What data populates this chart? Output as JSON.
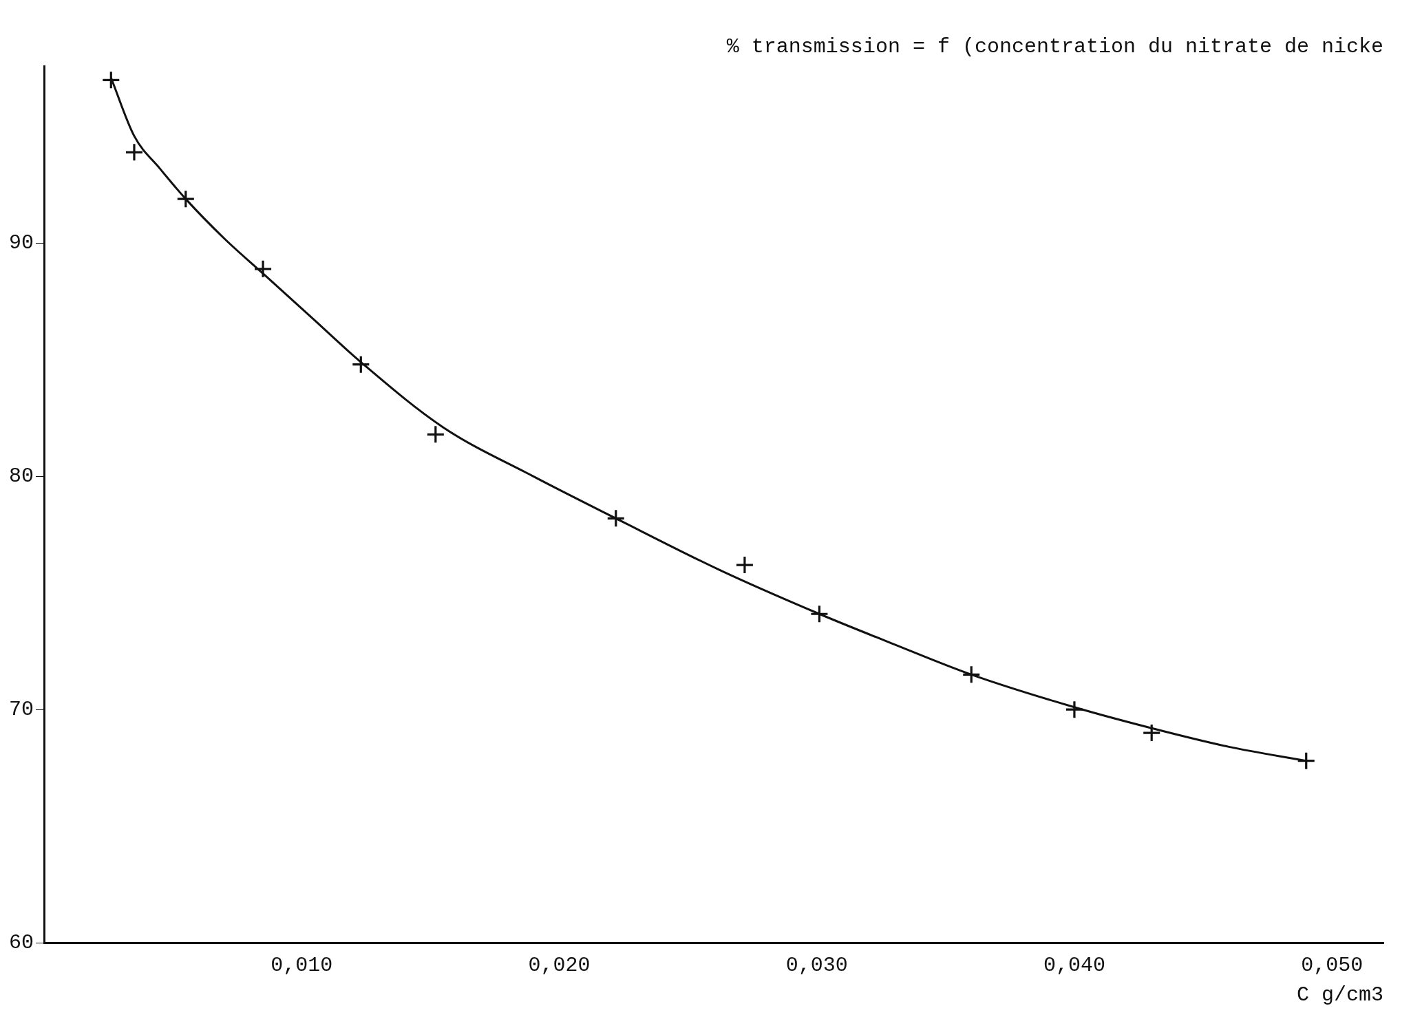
{
  "chart_data": {
    "type": "scatter",
    "title": "% transmission = f (concentration du nitrate de nicke",
    "xlabel": "C g/cm3",
    "xlim": [
      0,
      0.052
    ],
    "ylim": [
      60,
      97.6
    ],
    "xticks": [
      {
        "value": 0.01,
        "label": "0,010"
      },
      {
        "value": 0.02,
        "label": "0,020"
      },
      {
        "value": 0.03,
        "label": "0,030"
      },
      {
        "value": 0.04,
        "label": "0,040"
      },
      {
        "value": 0.05,
        "label": "0,050"
      }
    ],
    "yticks": [
      60,
      70,
      80,
      90
    ],
    "grid": false,
    "legend": false,
    "marker": "cross",
    "series": [
      {
        "color": "#111111",
        "x": [
          0.0026,
          0.0035,
          0.0055,
          0.0085,
          0.0123,
          0.0152,
          0.0222,
          0.0272,
          0.0301,
          0.036,
          0.04,
          0.043,
          0.049
        ],
        "values": [
          97,
          93.9,
          91.9,
          88.9,
          84.8,
          81.8,
          78.2,
          76.2,
          74.1,
          71.5,
          70,
          69,
          67.8
        ]
      },
      {
        "type": "line",
        "marker": "none",
        "color": "#111111",
        "x": [
          0.0026,
          0.0035,
          0.0045,
          0.0055,
          0.007,
          0.0085,
          0.0104,
          0.0123,
          0.0155,
          0.019,
          0.0222,
          0.0262,
          0.0301,
          0.033,
          0.036,
          0.04,
          0.043,
          0.046,
          0.049
        ],
        "values": [
          97.1,
          94.6,
          93.2,
          91.9,
          90.2,
          88.7,
          86.8,
          84.9,
          82.1,
          80,
          78.2,
          76,
          74.1,
          72.8,
          71.5,
          70.1,
          69.2,
          68.4,
          67.8
        ]
      }
    ]
  }
}
